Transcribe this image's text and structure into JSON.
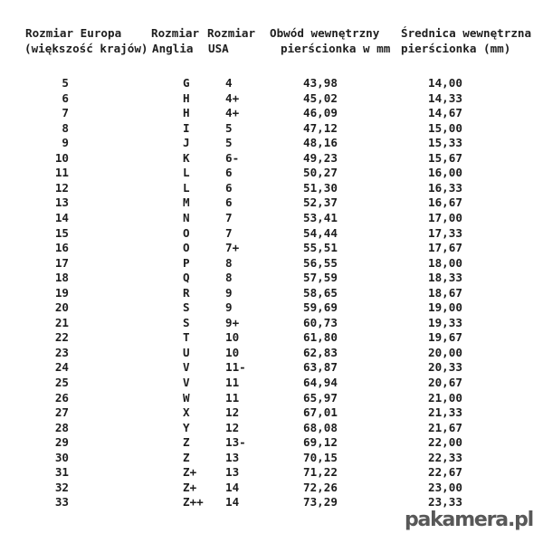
{
  "page": {
    "background_color": "#ffffff",
    "text_color": "#1e1e1e"
  },
  "table": {
    "headers": {
      "europe": {
        "line1": "Rozmiar Europa",
        "line2": "(większość krajów)"
      },
      "england": {
        "line1": "Rozmiar",
        "line2": "Anglia"
      },
      "usa": {
        "line1": "Rozmiar",
        "line2": "USA"
      },
      "circumference": {
        "line1": "Obwód wewnętrzny",
        "line2": "pierścionka w mm"
      },
      "diameter": {
        "line1": "Średnica wewnętrzna",
        "line2": "pierścionka (mm)"
      }
    },
    "rows": [
      {
        "eu": "5",
        "uk": "G",
        "us": "4",
        "obwod": "43,98",
        "srednica": "14,00"
      },
      {
        "eu": "6",
        "uk": "H",
        "us": "4+",
        "obwod": "45,02",
        "srednica": "14,33"
      },
      {
        "eu": "7",
        "uk": "H",
        "us": "4+",
        "obwod": "46,09",
        "srednica": "14,67"
      },
      {
        "eu": "8",
        "uk": "I",
        "us": "5",
        "obwod": "47,12",
        "srednica": "15,00"
      },
      {
        "eu": "9",
        "uk": "J",
        "us": "5",
        "obwod": "48,16",
        "srednica": "15,33"
      },
      {
        "eu": "10",
        "uk": "K",
        "us": "6-",
        "obwod": "49,23",
        "srednica": "15,67"
      },
      {
        "eu": "11",
        "uk": "L",
        "us": "6",
        "obwod": "50,27",
        "srednica": "16,00"
      },
      {
        "eu": "12",
        "uk": "L",
        "us": "6",
        "obwod": "51,30",
        "srednica": "16,33"
      },
      {
        "eu": "13",
        "uk": "M",
        "us": "6",
        "obwod": "52,37",
        "srednica": "16,67"
      },
      {
        "eu": "14",
        "uk": "N",
        "us": "7",
        "obwod": "53,41",
        "srednica": "17,00"
      },
      {
        "eu": "15",
        "uk": "O",
        "us": "7",
        "obwod": "54,44",
        "srednica": "17,33"
      },
      {
        "eu": "16",
        "uk": "O",
        "us": "7+",
        "obwod": "55,51",
        "srednica": "17,67"
      },
      {
        "eu": "17",
        "uk": "P",
        "us": "8",
        "obwod": "56,55",
        "srednica": "18,00"
      },
      {
        "eu": "18",
        "uk": "Q",
        "us": "8",
        "obwod": "57,59",
        "srednica": "18,33"
      },
      {
        "eu": "19",
        "uk": "R",
        "us": "9",
        "obwod": "58,65",
        "srednica": "18,67"
      },
      {
        "eu": "20",
        "uk": "S",
        "us": "9",
        "obwod": "59,69",
        "srednica": "19,00"
      },
      {
        "eu": "21",
        "uk": "S",
        "us": "9+",
        "obwod": "60,73",
        "srednica": "19,33"
      },
      {
        "eu": "22",
        "uk": "T",
        "us": "10",
        "obwod": "61,80",
        "srednica": "19,67"
      },
      {
        "eu": "23",
        "uk": "U",
        "us": "10",
        "obwod": "62,83",
        "srednica": "20,00"
      },
      {
        "eu": "24",
        "uk": "V",
        "us": "11-",
        "obwod": "63,87",
        "srednica": "20,33"
      },
      {
        "eu": "25",
        "uk": "V",
        "us": "11",
        "obwod": "64,94",
        "srednica": "20,67"
      },
      {
        "eu": "26",
        "uk": "W",
        "us": "11",
        "obwod": "65,97",
        "srednica": "21,00"
      },
      {
        "eu": "27",
        "uk": "X",
        "us": "12",
        "obwod": "67,01",
        "srednica": "21,33"
      },
      {
        "eu": "28",
        "uk": "Y",
        "us": "12",
        "obwod": "68,08",
        "srednica": "21,67"
      },
      {
        "eu": "29",
        "uk": "Z",
        "us": "13-",
        "obwod": "69,12",
        "srednica": "22,00"
      },
      {
        "eu": "30",
        "uk": "Z",
        "us": "13",
        "obwod": "70,15",
        "srednica": "22,33"
      },
      {
        "eu": "31",
        "uk": "Z+",
        "us": "13",
        "obwod": "71,22",
        "srednica": "22,67"
      },
      {
        "eu": "32",
        "uk": "Z+",
        "us": "14",
        "obwod": "72,26",
        "srednica": "23,00"
      },
      {
        "eu": "33",
        "uk": "Z++",
        "us": "14",
        "obwod": "73,29",
        "srednica": "23,33"
      }
    ]
  },
  "watermark": {
    "text": "pakamera.pl",
    "color": "#585858"
  }
}
